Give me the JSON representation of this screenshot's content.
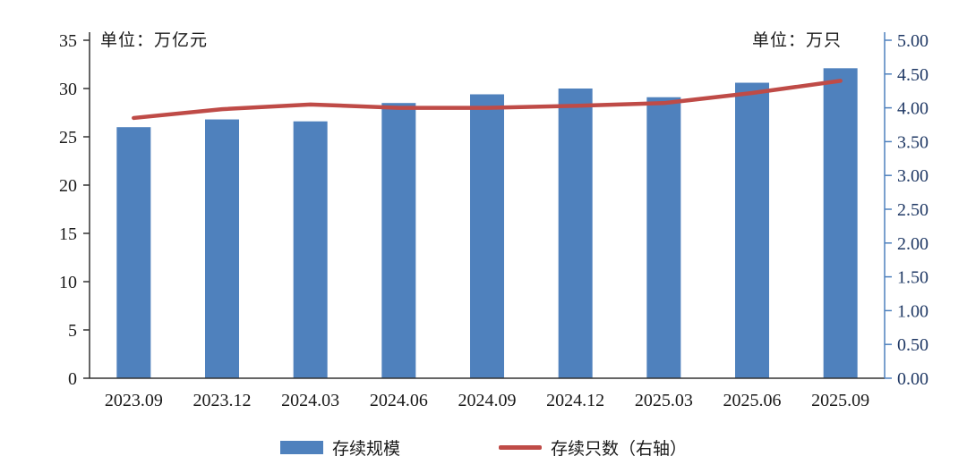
{
  "chart_data": {
    "type": "bar+line",
    "categories": [
      "2023.09",
      "2023.12",
      "2024.03",
      "2024.06",
      "2024.09",
      "2024.12",
      "2025.03",
      "2025.06",
      "2025.09"
    ],
    "series": [
      {
        "name": "存续规模",
        "type": "bar",
        "axis": "left",
        "values": [
          26.0,
          26.8,
          26.6,
          28.5,
          29.4,
          30.0,
          29.1,
          30.6,
          32.1
        ],
        "color": "#4f81bd"
      },
      {
        "name": "存续只数（右轴）",
        "type": "line",
        "axis": "right",
        "values": [
          3.85,
          3.98,
          4.05,
          4.0,
          4.0,
          4.03,
          4.07,
          4.22,
          4.4
        ],
        "color": "#bf4b47"
      }
    ],
    "left_axis": {
      "label": "单位：万亿元",
      "min": 0,
      "max": 35,
      "step": 5,
      "tick_labels": [
        "0",
        "5",
        "10",
        "15",
        "20",
        "25",
        "30",
        "35"
      ]
    },
    "right_axis": {
      "label": "单位：万只",
      "min": 0,
      "max": 5,
      "step": 0.5,
      "tick_labels": [
        "0.00",
        "0.50",
        "1.00",
        "1.50",
        "2.00",
        "2.50",
        "3.00",
        "3.50",
        "4.00",
        "4.50",
        "5.00"
      ]
    },
    "grid": "off",
    "legend_position": "bottom",
    "colors": {
      "bar": "#4f81bd",
      "line": "#bf4b47",
      "left_axis": "#333333",
      "right_axis": "#4f81bd",
      "text": "#1a1a1a",
      "right_tick_text": "#1f3864"
    }
  }
}
